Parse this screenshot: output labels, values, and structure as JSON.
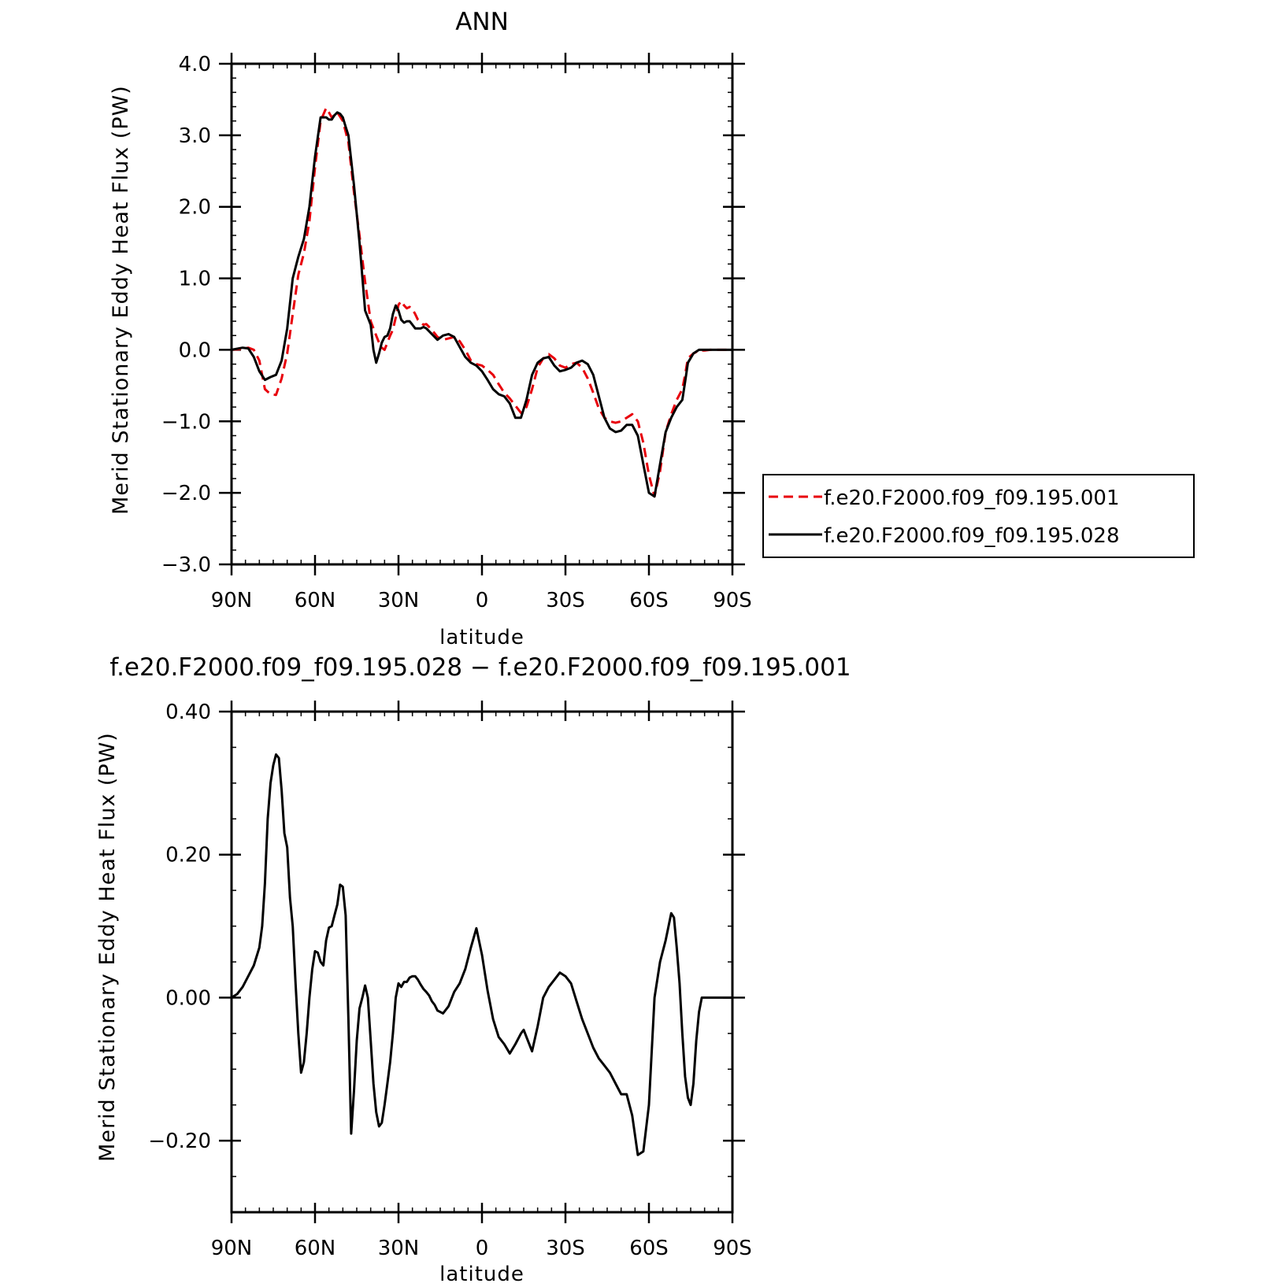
{
  "chart_data": [
    {
      "type": "line",
      "title": "ANN",
      "xlabel": "latitude",
      "ylabel": "Merid Stationary Eddy Heat Flux (PW)",
      "xlim": [
        90,
        -90
      ],
      "ylim": [
        -3.0,
        4.0
      ],
      "x_ticks": [
        90,
        60,
        30,
        0,
        -30,
        -60,
        -90
      ],
      "x_tick_labels": [
        "90N",
        "60N",
        "30N",
        "0",
        "30S",
        "60S",
        "90S"
      ],
      "y_ticks": [
        -3.0,
        -2.0,
        -1.0,
        0.0,
        1.0,
        2.0,
        3.0,
        4.0
      ],
      "y_tick_labels": [
        "−3.0",
        "−2.0",
        "−1.0",
        "0.0",
        "1.0",
        "2.0",
        "3.0",
        "4.0"
      ],
      "legend_position": "right",
      "series": [
        {
          "name": "f.e20.F2000.f09_f09.195.001",
          "color": "#e8000b",
          "style": "dashed",
          "x": [
            90,
            87,
            84,
            82,
            80,
            78,
            76,
            74,
            72,
            70,
            68,
            66,
            64,
            62,
            60,
            58,
            56,
            55,
            54,
            53,
            52,
            51,
            50,
            49,
            48,
            46,
            44,
            42,
            40,
            39,
            38,
            37,
            36,
            35,
            34,
            33,
            32,
            31,
            30,
            29,
            28,
            27,
            26,
            25,
            24,
            23,
            22,
            21,
            20,
            18,
            16,
            14,
            12,
            10,
            8,
            6,
            4,
            2,
            0,
            -2,
            -4,
            -6,
            -8,
            -10,
            -12,
            -14,
            -16,
            -18,
            -20,
            -22,
            -24,
            -26,
            -28,
            -30,
            -32,
            -34,
            -36,
            -38,
            -40,
            -42,
            -44,
            -46,
            -48,
            -50,
            -52,
            -54,
            -56,
            -58,
            -60,
            -62,
            -64,
            -66,
            -68,
            -70,
            -72,
            -73,
            -74,
            -76,
            -78,
            -80,
            -82,
            -84,
            -86,
            -88,
            -90
          ],
          "y": [
            0.0,
            0.01,
            0.03,
            0.0,
            -0.15,
            -0.55,
            -0.62,
            -0.63,
            -0.4,
            -0.05,
            0.5,
            1.05,
            1.35,
            1.8,
            2.55,
            3.2,
            3.38,
            3.32,
            3.25,
            3.28,
            3.32,
            3.26,
            3.2,
            3.05,
            2.9,
            2.2,
            1.6,
            0.95,
            0.4,
            0.3,
            0.2,
            0.1,
            0.03,
            0.0,
            0.1,
            0.2,
            0.28,
            0.45,
            0.63,
            0.68,
            0.62,
            0.58,
            0.6,
            0.57,
            0.5,
            0.42,
            0.38,
            0.35,
            0.36,
            0.28,
            0.18,
            0.14,
            0.16,
            0.18,
            0.12,
            0.0,
            -0.15,
            -0.2,
            -0.22,
            -0.28,
            -0.35,
            -0.48,
            -0.6,
            -0.68,
            -0.78,
            -0.88,
            -0.8,
            -0.55,
            -0.25,
            -0.12,
            -0.06,
            -0.12,
            -0.22,
            -0.25,
            -0.2,
            -0.18,
            -0.25,
            -0.4,
            -0.6,
            -0.82,
            -0.95,
            -1.0,
            -1.02,
            -1.0,
            -0.95,
            -0.9,
            -1.0,
            -1.3,
            -1.75,
            -2.05,
            -1.7,
            -1.15,
            -0.9,
            -0.7,
            -0.55,
            -0.35,
            -0.12,
            -0.05,
            -0.01,
            -0.01,
            0.0,
            0.0,
            0.0,
            0.0,
            0.0
          ],
          "note": ""
        },
        {
          "name": "f.e20.F2000.f09_f09.195.028",
          "color": "#000000",
          "style": "solid",
          "x": [
            90,
            86,
            84,
            82,
            80,
            78,
            76,
            74,
            72,
            70,
            68,
            66,
            64,
            62,
            60,
            58,
            56,
            55,
            54,
            53,
            52,
            51,
            50,
            49,
            48,
            46,
            44,
            42,
            40,
            39,
            38,
            37,
            36,
            35,
            34,
            33,
            32,
            31,
            30,
            29,
            28,
            27,
            26,
            25,
            24,
            23,
            22,
            21,
            20,
            18,
            16,
            14,
            12,
            10,
            8,
            6,
            4,
            2,
            0,
            -2,
            -4,
            -6,
            -8,
            -10,
            -12,
            -14,
            -16,
            -18,
            -20,
            -22,
            -24,
            -26,
            -28,
            -30,
            -32,
            -34,
            -36,
            -38,
            -40,
            -42,
            -44,
            -46,
            -48,
            -50,
            -52,
            -54,
            -56,
            -58,
            -60,
            -62,
            -64,
            -66,
            -68,
            -70,
            -72,
            -73,
            -74,
            -76,
            -78,
            -80,
            -82,
            -84,
            -86,
            -88,
            -90
          ],
          "y": [
            0.0,
            0.03,
            0.02,
            -0.1,
            -0.3,
            -0.42,
            -0.38,
            -0.35,
            -0.15,
            0.3,
            1.0,
            1.3,
            1.55,
            2.0,
            2.7,
            3.25,
            3.25,
            3.22,
            3.22,
            3.28,
            3.32,
            3.3,
            3.25,
            3.12,
            3.0,
            2.3,
            1.5,
            0.55,
            0.35,
            0.0,
            -0.18,
            -0.05,
            0.1,
            0.18,
            0.2,
            0.3,
            0.5,
            0.62,
            0.55,
            0.42,
            0.38,
            0.4,
            0.4,
            0.35,
            0.3,
            0.3,
            0.3,
            0.32,
            0.3,
            0.22,
            0.14,
            0.2,
            0.22,
            0.18,
            0.04,
            -0.1,
            -0.18,
            -0.22,
            -0.3,
            -0.42,
            -0.55,
            -0.62,
            -0.65,
            -0.75,
            -0.95,
            -0.95,
            -0.7,
            -0.35,
            -0.18,
            -0.12,
            -0.1,
            -0.22,
            -0.3,
            -0.28,
            -0.25,
            -0.18,
            -0.15,
            -0.2,
            -0.35,
            -0.65,
            -0.95,
            -1.1,
            -1.15,
            -1.13,
            -1.05,
            -1.05,
            -1.2,
            -1.6,
            -2.0,
            -2.05,
            -1.6,
            -1.15,
            -0.95,
            -0.8,
            -0.7,
            -0.45,
            -0.18,
            -0.05,
            0.0,
            0.0,
            0.0,
            0.0,
            0.0,
            0.0,
            0.0
          ],
          "note": ""
        }
      ]
    },
    {
      "type": "line",
      "title": "f.e20.F2000.f09_f09.195.028 − f.e20.F2000.f09_f09.195.001",
      "xlabel": "latitude",
      "ylabel": "Merid Stationary Eddy Heat Flux (PW)",
      "xlim": [
        90,
        -90
      ],
      "ylim": [
        -0.3,
        0.4
      ],
      "x_ticks": [
        90,
        60,
        30,
        0,
        -30,
        -60,
        -90
      ],
      "x_tick_labels": [
        "90N",
        "60N",
        "30N",
        "0",
        "30S",
        "60S",
        "90S"
      ],
      "y_ticks": [
        -0.2,
        0.0,
        0.2,
        0.4
      ],
      "y_tick_labels": [
        "−0.20",
        "0.00",
        "0.20",
        "0.40"
      ],
      "series": [
        {
          "color": "#000000",
          "style": "solid",
          "x": [
            90,
            88,
            86,
            84,
            82,
            80,
            79,
            78,
            77,
            76,
            75,
            74,
            73,
            72,
            71,
            70,
            69,
            68,
            67,
            66,
            65,
            64,
            63,
            62,
            61,
            60,
            59,
            58,
            57,
            56,
            55,
            54,
            53,
            52,
            51,
            50,
            49,
            48,
            47,
            46,
            45,
            44,
            43,
            42,
            41,
            40,
            39,
            38,
            37,
            36,
            35,
            34,
            33,
            32,
            31,
            30,
            29,
            28,
            27,
            26,
            25,
            24,
            23,
            22,
            21,
            20,
            19,
            18,
            17,
            16,
            15,
            14,
            12,
            10,
            8,
            6,
            4,
            2,
            0,
            -2,
            -4,
            -6,
            -8,
            -10,
            -12,
            -14,
            -15,
            -16,
            -18,
            -20,
            -22,
            -24,
            -26,
            -28,
            -30,
            -32,
            -34,
            -36,
            -38,
            -40,
            -42,
            -44,
            -46,
            -48,
            -50,
            -52,
            -54,
            -56,
            -58,
            -60,
            -62,
            -64,
            -66,
            -68,
            -69,
            -70,
            -71,
            -72,
            -73,
            -74,
            -75,
            -76,
            -77,
            -78,
            -79,
            -80,
            -81,
            -82,
            -83,
            -84,
            -85,
            -86,
            -87,
            -88,
            -89,
            -90
          ],
          "y": [
            0.0,
            0.005,
            0.015,
            0.03,
            0.045,
            0.07,
            0.1,
            0.16,
            0.25,
            0.3,
            0.325,
            0.34,
            0.335,
            0.29,
            0.23,
            0.21,
            0.14,
            0.1,
            0.02,
            -0.05,
            -0.105,
            -0.09,
            -0.05,
            0.0,
            0.04,
            0.065,
            0.063,
            0.05,
            0.045,
            0.08,
            0.098,
            0.1,
            0.115,
            0.13,
            0.158,
            0.155,
            0.115,
            -0.03,
            -0.19,
            -0.13,
            -0.06,
            -0.015,
            0.0,
            0.017,
            0.0,
            -0.06,
            -0.12,
            -0.16,
            -0.18,
            -0.175,
            -0.15,
            -0.12,
            -0.09,
            -0.05,
            0.0,
            0.02,
            0.015,
            0.022,
            0.022,
            0.028,
            0.03,
            0.03,
            0.025,
            0.018,
            0.012,
            0.008,
            0.003,
            -0.005,
            -0.01,
            -0.018,
            -0.02,
            -0.022,
            -0.012,
            0.008,
            0.02,
            0.04,
            0.07,
            0.097,
            0.06,
            0.01,
            -0.03,
            -0.055,
            -0.065,
            -0.078,
            -0.065,
            -0.05,
            -0.045,
            -0.055,
            -0.075,
            -0.04,
            0.0,
            0.015,
            0.025,
            0.035,
            0.03,
            0.02,
            -0.005,
            -0.03,
            -0.05,
            -0.07,
            -0.085,
            -0.095,
            -0.105,
            -0.12,
            -0.135,
            -0.135,
            -0.165,
            -0.22,
            -0.215,
            -0.15,
            0.0,
            0.05,
            0.08,
            0.118,
            0.112,
            0.07,
            0.02,
            -0.05,
            -0.11,
            -0.14,
            -0.15,
            -0.12,
            -0.06,
            -0.02,
            0.0,
            0.0,
            0.0,
            0.0,
            0.0,
            0.0,
            0.0,
            0.0,
            0.0,
            0.0,
            0.0,
            0.0
          ],
          "note": ""
        }
      ]
    }
  ]
}
